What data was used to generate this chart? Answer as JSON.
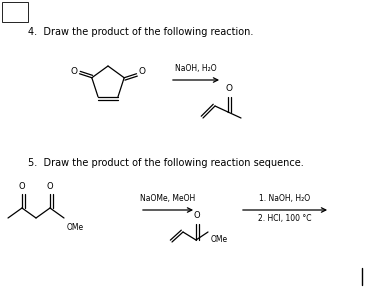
{
  "background_color": "#ffffff",
  "fig_width": 3.7,
  "fig_height": 2.92,
  "dpi": 100,
  "question4_text": "4.  Draw the product of the following reaction.",
  "question5_text": "5.  Draw the product of the following reaction sequence.",
  "reagent4": "NaOH, H₂O",
  "reagent5a": "NaOMe, MeOH",
  "reagent5b_1": "1. NaOH, H₂O",
  "reagent5b_2": "2. HCl, 100 °C",
  "font_size_question": 7.0,
  "font_size_reagent": 5.5,
  "text_color": "#000000",
  "line_color": "#000000",
  "line_width": 0.9
}
